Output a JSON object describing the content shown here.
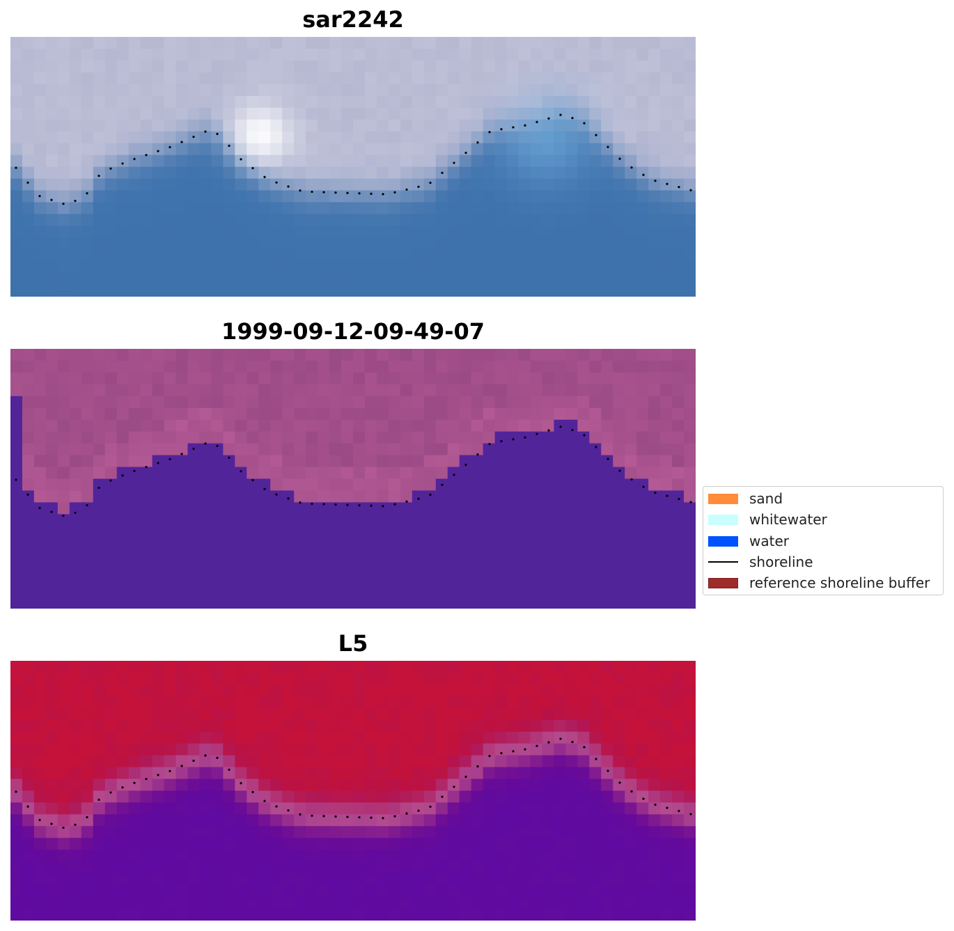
{
  "panels": [
    {
      "title": "sar2242",
      "kind": "rgb"
    },
    {
      "title": "1999-09-12-09-49-07",
      "kind": "class"
    },
    {
      "title": "L5",
      "kind": "prob"
    }
  ],
  "legend": [
    {
      "label": "sand",
      "color": "#ff8c3a",
      "type": "patch"
    },
    {
      "label": "whitewater",
      "color": "#c8fffe",
      "type": "patch"
    },
    {
      "label": "water",
      "color": "#0051ff",
      "type": "patch"
    },
    {
      "label": "shoreline",
      "color": "#000000",
      "type": "line"
    },
    {
      "label": "reference shoreline buffer",
      "color": "#a02b2b",
      "type": "patch",
      "edge": "#7a1d1d"
    }
  ],
  "colors": {
    "rgb_water": "#3f73ad",
    "rgb_land": "#b6b8d2",
    "rgb_highlight": "#ffffff",
    "rgb_blue_sky": "#7ab8e6",
    "class_water": "#52249a",
    "class_land": "#9a4a85",
    "class_land_bright": "#b65b96",
    "prob_land": "#c4123a",
    "prob_water": "#5f0aa0",
    "prob_edge": "#c0609a",
    "shoreline_dots": "#000000"
  }
}
